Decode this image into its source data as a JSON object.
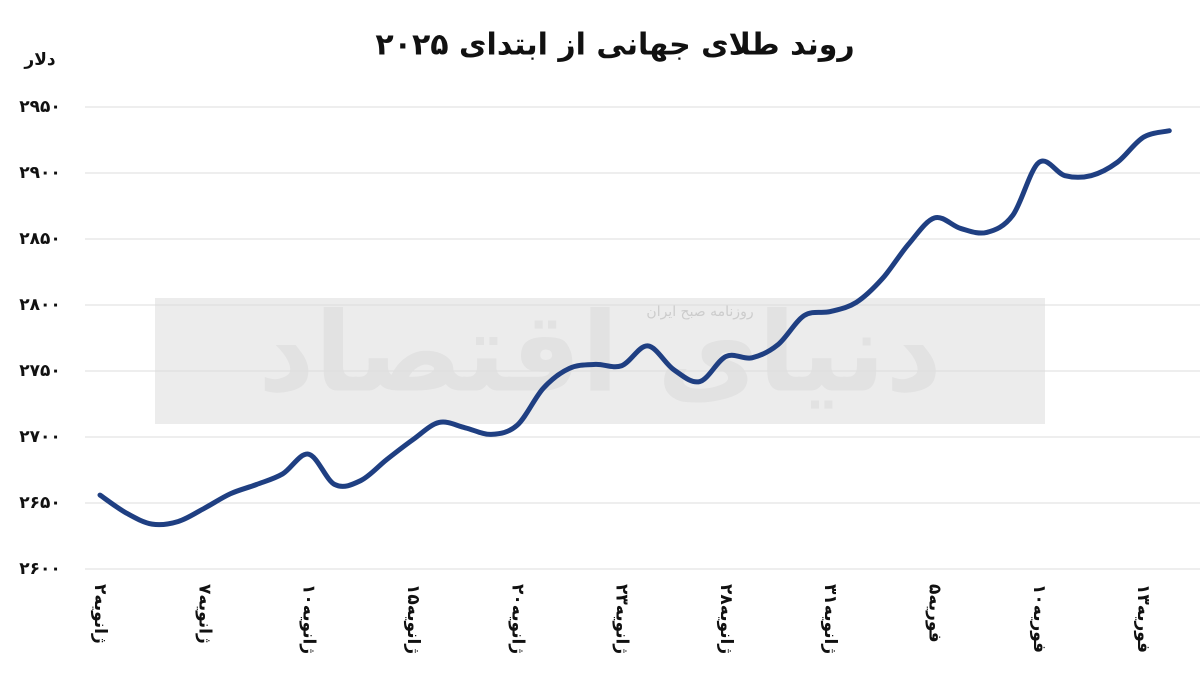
{
  "chart_data": {
    "type": "line",
    "title": "روند طلای جهانی از ابتدای ۲۰۲۵",
    "y_label": "دلار",
    "watermark": [
      "دنیای اقتصاد",
      "روزنامه صبح ایران"
    ],
    "categories": [
      "۲ژانویه",
      null,
      null,
      null,
      "۷ژانویه",
      null,
      null,
      null,
      "۱۰ژانویه",
      null,
      null,
      null,
      "۱۵ژانویه",
      null,
      null,
      null,
      "۲۰ژانویه",
      null,
      null,
      null,
      "۲۳ژانویه",
      null,
      null,
      null,
      "۲۸ژانویه",
      null,
      null,
      null,
      "۳۱ژانویه",
      null,
      null,
      null,
      "۵فوریه",
      null,
      null,
      null,
      "۱۰فوریه",
      null,
      null,
      null,
      "۱۳فوریه",
      null
    ],
    "series": [
      {
        "name": "طلا",
        "color": "#1f3f82",
        "values": [
          2656,
          2642.5,
          2634,
          2636,
          2646,
          2657,
          2664,
          2672,
          2687,
          2664,
          2667,
          2683,
          2698,
          2711,
          2707,
          2702,
          2709,
          2737,
          2752,
          2755,
          2754,
          2769,
          2751,
          2742,
          2761,
          2760,
          2770,
          2792,
          2795,
          2802,
          2820,
          2846,
          2866,
          2858,
          2855,
          2868,
          2908,
          2898,
          2898,
          2908,
          2927,
          2932
        ]
      }
    ],
    "ylim": [
      2600,
      2950
    ],
    "yticks": [
      {
        "value": 2600,
        "label": "۲۶۰۰"
      },
      {
        "value": 2650,
        "label": "۲۶۵۰"
      },
      {
        "value": 2700,
        "label": "۲۷۰۰"
      },
      {
        "value": 2750,
        "label": "۲۷۵۰"
      },
      {
        "value": 2800,
        "label": "۲۸۰۰"
      },
      {
        "value": 2850,
        "label": "۲۸۵۰"
      },
      {
        "value": 2900,
        "label": "۲۹۰۰"
      },
      {
        "value": 2950,
        "label": "۲۹۵۰"
      }
    ],
    "grid": true
  }
}
